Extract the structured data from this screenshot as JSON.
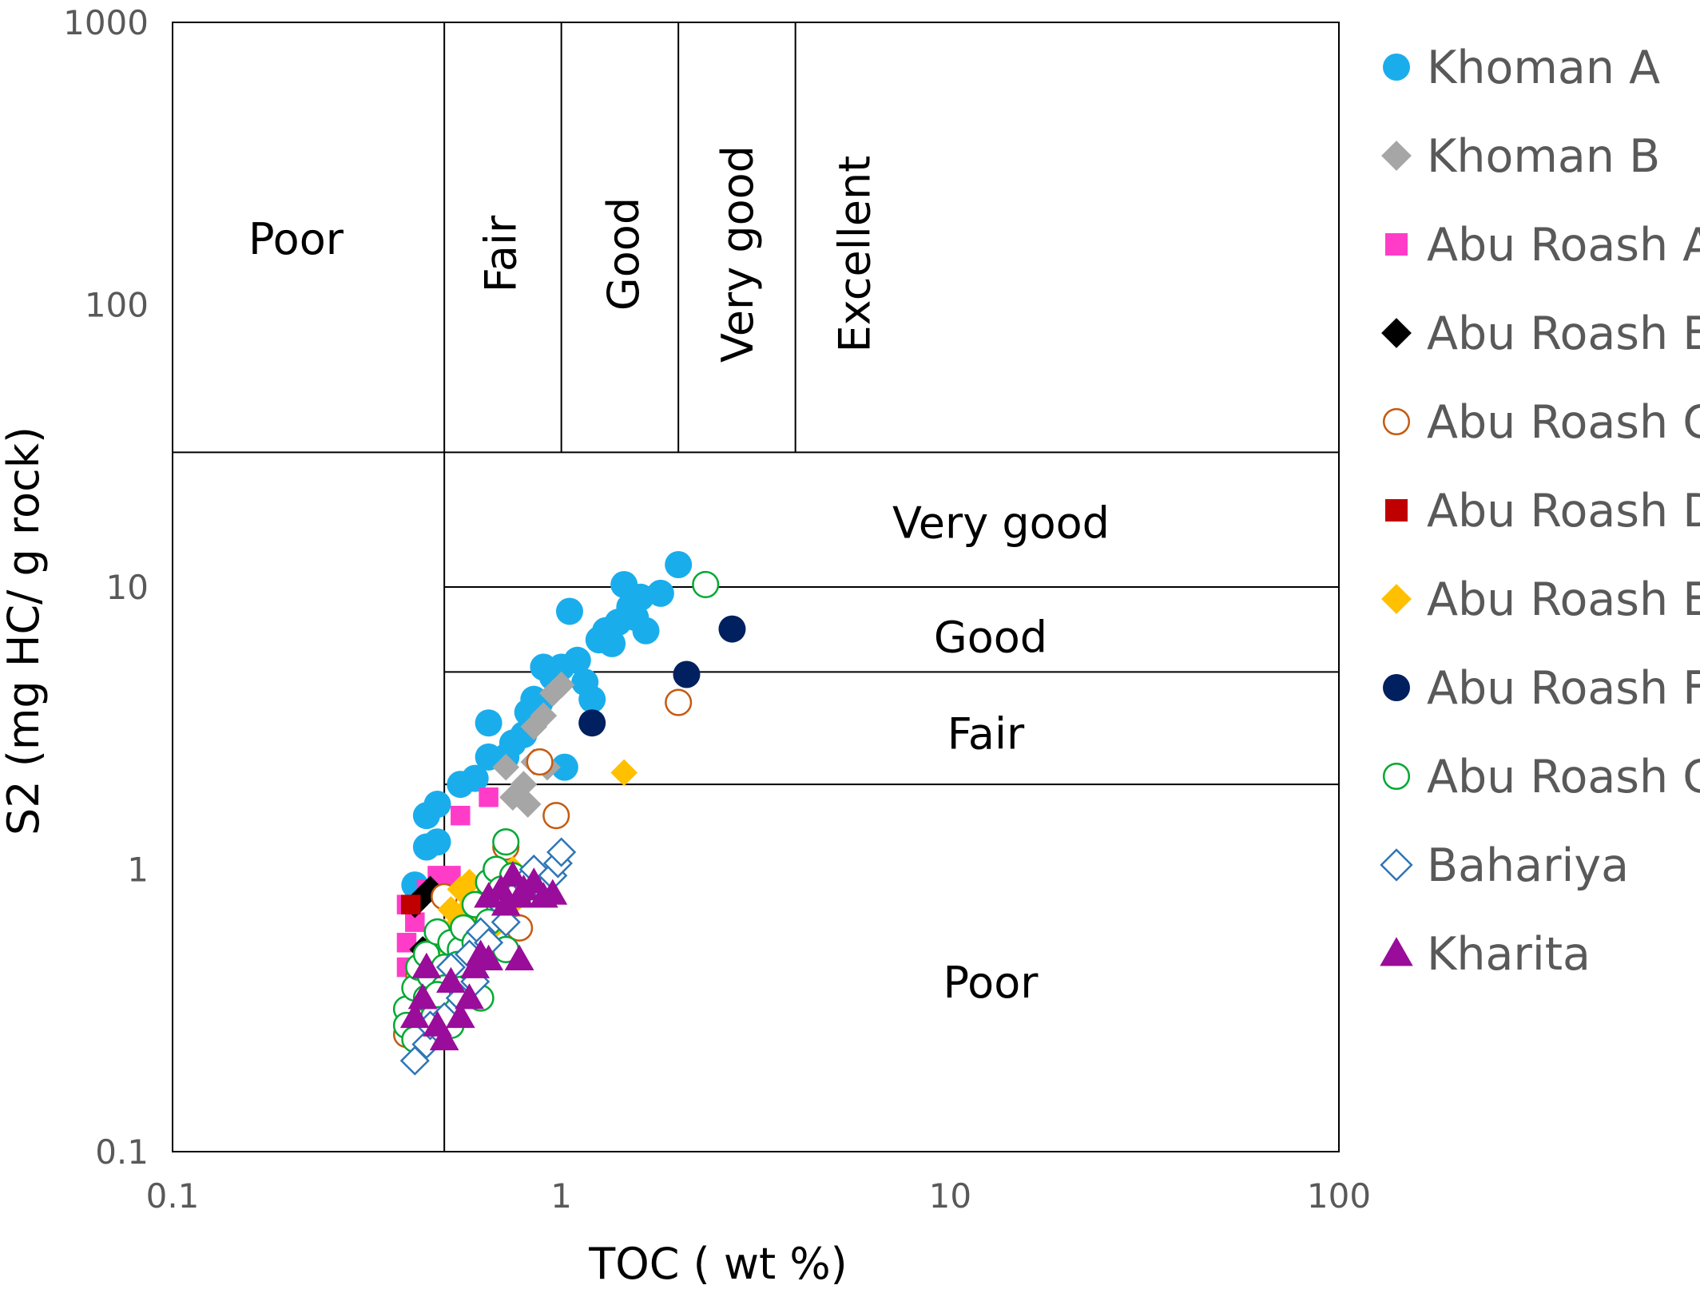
{
  "chart_data": {
    "type": "scatter",
    "xlabel": "TOC ( wt %)",
    "ylabel": "S2 (mg HC/ g rock)",
    "x_scale": "log",
    "y_scale": "log",
    "xlim": [
      0.1,
      100
    ],
    "ylim": [
      0.1,
      1000
    ],
    "x_ticks": [
      "0.1",
      "1",
      "10",
      "100"
    ],
    "y_ticks": [
      "0.1",
      "1",
      "10",
      "100",
      "1000"
    ],
    "grid": false,
    "legend_position": "right",
    "boundaries": {
      "toc": [
        0.5,
        1,
        2,
        4
      ],
      "s2": [
        2,
        5,
        10,
        30
      ]
    },
    "toc_classes": [
      {
        "label": "Poor",
        "x": 0.2
      },
      {
        "label": "Fair",
        "x": 0.7
      },
      {
        "label": "Good",
        "x": 1.45
      },
      {
        "label": "Very good",
        "x": 2.85
      },
      {
        "label": "Excellent",
        "x": 5.7
      }
    ],
    "s2_classes": [
      {
        "label": "Very good",
        "y": 17
      },
      {
        "label": "Good",
        "y": 6.7
      },
      {
        "label": "Fair",
        "y": 3.05
      },
      {
        "label": "Poor",
        "y": 0.4
      }
    ],
    "series": [
      {
        "name": "Khoman A",
        "marker": "circle",
        "filled": true,
        "color": "#1AADEC",
        "points": [
          [
            0.42,
            0.88
          ],
          [
            0.45,
            1.2
          ],
          [
            0.45,
            1.55
          ],
          [
            0.48,
            1.7
          ],
          [
            0.48,
            1.25
          ],
          [
            0.55,
            2.0
          ],
          [
            0.6,
            2.1
          ],
          [
            0.65,
            3.3
          ],
          [
            0.65,
            2.5
          ],
          [
            0.72,
            2.5
          ],
          [
            0.75,
            2.8
          ],
          [
            0.8,
            3.0
          ],
          [
            0.82,
            3.6
          ],
          [
            0.85,
            4.0
          ],
          [
            0.88,
            3.9
          ],
          [
            0.9,
            5.2
          ],
          [
            0.95,
            4.8
          ],
          [
            1.0,
            5.2
          ],
          [
            1.02,
            2.3
          ],
          [
            1.05,
            8.2
          ],
          [
            1.1,
            5.5
          ],
          [
            1.15,
            4.6
          ],
          [
            1.2,
            4.0
          ],
          [
            1.25,
            6.5
          ],
          [
            1.3,
            7.0
          ],
          [
            1.35,
            6.3
          ],
          [
            1.4,
            7.5
          ],
          [
            1.45,
            10.2
          ],
          [
            1.5,
            8.5
          ],
          [
            1.55,
            7.8
          ],
          [
            1.6,
            9.2
          ],
          [
            1.65,
            7.0
          ],
          [
            1.8,
            9.5
          ],
          [
            2.0,
            12.0
          ]
        ]
      },
      {
        "name": "Khoman B",
        "marker": "diamond",
        "filled": true,
        "color": "#A6A6A6",
        "points": [
          [
            0.72,
            2.3
          ],
          [
            0.75,
            1.8
          ],
          [
            0.8,
            2.0
          ],
          [
            0.82,
            1.7
          ],
          [
            0.85,
            2.4
          ],
          [
            0.85,
            3.2
          ],
          [
            0.9,
            3.5
          ],
          [
            0.92,
            2.3
          ],
          [
            0.95,
            4.2
          ],
          [
            1.0,
            4.5
          ]
        ]
      },
      {
        "name": "Abu Roash A",
        "marker": "square",
        "filled": true,
        "color": "#FF3CC8",
        "points": [
          [
            0.4,
            0.75
          ],
          [
            0.4,
            0.55
          ],
          [
            0.4,
            0.45
          ],
          [
            0.42,
            0.65
          ],
          [
            0.48,
            0.95
          ],
          [
            0.52,
            0.95
          ],
          [
            0.55,
            1.55
          ],
          [
            0.65,
            1.8
          ],
          [
            0.45,
            0.85
          ]
        ]
      },
      {
        "name": "Abu Roash B",
        "marker": "diamond",
        "filled": true,
        "color": "#000000",
        "points": [
          [
            0.42,
            0.75
          ],
          [
            0.44,
            0.8
          ],
          [
            0.46,
            0.85
          ],
          [
            0.44,
            0.52
          ],
          [
            0.42,
            0.38
          ]
        ]
      },
      {
        "name": "Abu Roash C",
        "marker": "circle",
        "filled": false,
        "color": "#C55A11",
        "points": [
          [
            0.4,
            0.26
          ],
          [
            0.43,
            0.42
          ],
          [
            0.5,
            0.8
          ],
          [
            0.6,
            0.7
          ],
          [
            0.72,
            1.2
          ],
          [
            0.78,
            0.62
          ],
          [
            0.88,
            2.4
          ],
          [
            0.97,
            1.55
          ],
          [
            2.0,
            3.9
          ]
        ]
      },
      {
        "name": "Abu Roash D",
        "marker": "square",
        "filled": true,
        "color": "#C00000",
        "points": [
          [
            0.41,
            0.75
          ]
        ]
      },
      {
        "name": "Abu Roash E",
        "marker": "diamond",
        "filled": true,
        "color": "#FFC000",
        "points": [
          [
            0.48,
            0.55
          ],
          [
            0.5,
            0.6
          ],
          [
            0.52,
            0.72
          ],
          [
            0.55,
            0.85
          ],
          [
            0.58,
            0.9
          ],
          [
            0.6,
            0.68
          ],
          [
            0.62,
            0.78
          ],
          [
            0.65,
            0.6
          ],
          [
            0.68,
            0.9
          ],
          [
            0.72,
            0.72
          ],
          [
            0.75,
            1.0
          ],
          [
            0.78,
            0.8
          ],
          [
            1.45,
            2.2
          ],
          [
            0.53,
            0.62
          ],
          [
            0.57,
            0.72
          ]
        ]
      },
      {
        "name": "Abu Roash F",
        "marker": "circle",
        "filled": true,
        "color": "#002060",
        "points": [
          [
            1.2,
            3.3
          ],
          [
            2.1,
            4.9
          ],
          [
            2.75,
            7.1
          ]
        ]
      },
      {
        "name": "Abu Roash G",
        "marker": "circle",
        "filled": false,
        "color": "#00A933",
        "points": [
          [
            0.4,
            0.32
          ],
          [
            0.4,
            0.28
          ],
          [
            0.42,
            0.38
          ],
          [
            0.42,
            0.25
          ],
          [
            0.43,
            0.45
          ],
          [
            0.45,
            0.35
          ],
          [
            0.45,
            0.5
          ],
          [
            0.46,
            0.42
          ],
          [
            0.47,
            0.3
          ],
          [
            0.48,
            0.6
          ],
          [
            0.5,
            0.45
          ],
          [
            0.5,
            0.38
          ],
          [
            0.52,
            0.55
          ],
          [
            0.52,
            0.28
          ],
          [
            0.55,
            0.52
          ],
          [
            0.55,
            0.4
          ],
          [
            0.56,
            0.62
          ],
          [
            0.58,
            0.45
          ],
          [
            0.6,
            0.75
          ],
          [
            0.6,
            0.55
          ],
          [
            0.62,
            0.35
          ],
          [
            0.65,
            0.9
          ],
          [
            0.65,
            0.65
          ],
          [
            0.68,
            1.0
          ],
          [
            0.7,
            0.85
          ],
          [
            0.72,
            1.25
          ],
          [
            0.72,
            0.52
          ],
          [
            0.75,
            0.95
          ],
          [
            0.78,
            0.82
          ],
          [
            2.35,
            10.2
          ],
          [
            0.48,
            0.36
          ],
          [
            0.54,
            0.46
          ]
        ]
      },
      {
        "name": "Bahariya",
        "marker": "diamond",
        "filled": false,
        "color": "#2E75B6",
        "points": [
          [
            0.42,
            0.21
          ],
          [
            0.45,
            0.24
          ],
          [
            0.5,
            0.3
          ],
          [
            0.52,
            0.45
          ],
          [
            0.55,
            0.35
          ],
          [
            0.58,
            0.5
          ],
          [
            0.6,
            0.4
          ],
          [
            0.62,
            0.6
          ],
          [
            0.65,
            0.55
          ],
          [
            0.7,
            0.75
          ],
          [
            0.72,
            0.65
          ],
          [
            0.8,
            0.9
          ],
          [
            0.85,
            1.0
          ],
          [
            0.9,
            0.85
          ],
          [
            0.95,
            0.95
          ],
          [
            0.98,
            1.05
          ],
          [
            1.0,
            1.15
          ],
          [
            0.46,
            0.28
          ]
        ]
      },
      {
        "name": "Kharita",
        "marker": "triangle",
        "filled": true,
        "color": "#9A0C9A",
        "points": [
          [
            0.42,
            0.3
          ],
          [
            0.44,
            0.35
          ],
          [
            0.45,
            0.45
          ],
          [
            0.48,
            0.28
          ],
          [
            0.5,
            0.25
          ],
          [
            0.52,
            0.4
          ],
          [
            0.55,
            0.3
          ],
          [
            0.58,
            0.35
          ],
          [
            0.6,
            0.45
          ],
          [
            0.62,
            0.5
          ],
          [
            0.65,
            0.48
          ],
          [
            0.65,
            0.8
          ],
          [
            0.7,
            0.85
          ],
          [
            0.72,
            0.75
          ],
          [
            0.75,
            0.95
          ],
          [
            0.78,
            0.8
          ],
          [
            0.8,
            0.85
          ],
          [
            0.85,
            0.9
          ],
          [
            0.9,
            0.8
          ],
          [
            0.95,
            0.82
          ],
          [
            0.78,
            0.48
          ]
        ]
      }
    ]
  }
}
